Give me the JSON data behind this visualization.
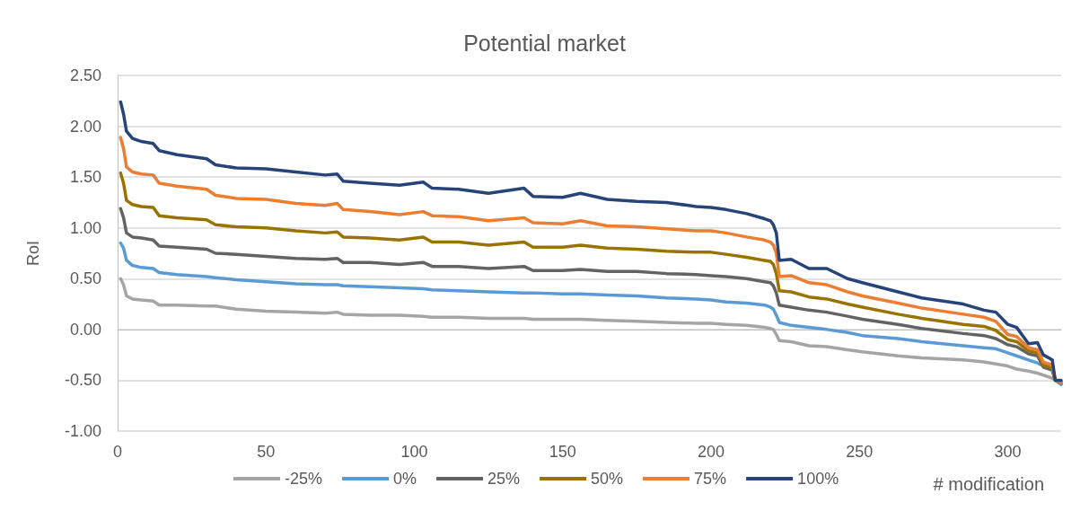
{
  "chart_data": {
    "type": "line",
    "title": "Potential market",
    "xlabel": "# modification",
    "ylabel": "RoI",
    "x": [
      1,
      2,
      3,
      5,
      8,
      12,
      14,
      20,
      30,
      33,
      40,
      50,
      60,
      70,
      74,
      76,
      85,
      95,
      103,
      106,
      115,
      125,
      137,
      140,
      150,
      156,
      165,
      175,
      185,
      195,
      200,
      205,
      212,
      218,
      220,
      221,
      222,
      223,
      227,
      233,
      239,
      246,
      251,
      263,
      271,
      285,
      292,
      296,
      300,
      303,
      307,
      310,
      312,
      315,
      316,
      318
    ],
    "series": [
      {
        "name": "-25%",
        "color": "#a5a5a5",
        "values": [
          0.5,
          0.44,
          0.33,
          0.3,
          0.29,
          0.28,
          0.24,
          0.24,
          0.23,
          0.23,
          0.2,
          0.18,
          0.17,
          0.16,
          0.17,
          0.15,
          0.14,
          0.14,
          0.13,
          0.12,
          0.12,
          0.11,
          0.11,
          0.1,
          0.1,
          0.1,
          0.09,
          0.08,
          0.07,
          0.06,
          0.06,
          0.05,
          0.04,
          0.02,
          0.01,
          0.0,
          -0.05,
          -0.11,
          -0.12,
          -0.16,
          -0.17,
          -0.2,
          -0.22,
          -0.26,
          -0.28,
          -0.3,
          -0.32,
          -0.34,
          -0.36,
          -0.39,
          -0.41,
          -0.43,
          -0.45,
          -0.48,
          -0.5,
          -0.54
        ]
      },
      {
        "name": "0%",
        "color": "#5b9bd5",
        "values": [
          0.85,
          0.8,
          0.68,
          0.63,
          0.61,
          0.6,
          0.56,
          0.54,
          0.52,
          0.51,
          0.49,
          0.47,
          0.45,
          0.44,
          0.44,
          0.43,
          0.42,
          0.41,
          0.4,
          0.39,
          0.38,
          0.37,
          0.36,
          0.36,
          0.35,
          0.35,
          0.34,
          0.33,
          0.31,
          0.3,
          0.29,
          0.27,
          0.26,
          0.24,
          0.22,
          0.2,
          0.14,
          0.07,
          0.04,
          0.02,
          0.0,
          -0.03,
          -0.06,
          -0.09,
          -0.12,
          -0.16,
          -0.18,
          -0.19,
          -0.23,
          -0.26,
          -0.3,
          -0.33,
          -0.36,
          -0.4,
          -0.5,
          -0.54
        ]
      },
      {
        "name": "25%",
        "color": "#636363",
        "values": [
          1.19,
          1.1,
          0.95,
          0.91,
          0.9,
          0.88,
          0.82,
          0.81,
          0.79,
          0.75,
          0.74,
          0.72,
          0.7,
          0.69,
          0.7,
          0.66,
          0.66,
          0.64,
          0.66,
          0.62,
          0.62,
          0.6,
          0.62,
          0.58,
          0.58,
          0.59,
          0.57,
          0.57,
          0.55,
          0.54,
          0.53,
          0.52,
          0.5,
          0.47,
          0.46,
          0.43,
          0.36,
          0.24,
          0.22,
          0.19,
          0.17,
          0.13,
          0.1,
          0.05,
          0.01,
          -0.04,
          -0.06,
          -0.09,
          -0.15,
          -0.17,
          -0.24,
          -0.26,
          -0.37,
          -0.4,
          -0.5,
          -0.52
        ]
      },
      {
        "name": "50%",
        "color": "#997300",
        "values": [
          1.54,
          1.44,
          1.27,
          1.23,
          1.21,
          1.2,
          1.12,
          1.1,
          1.08,
          1.03,
          1.01,
          1.0,
          0.97,
          0.95,
          0.96,
          0.91,
          0.9,
          0.88,
          0.91,
          0.86,
          0.86,
          0.83,
          0.86,
          0.81,
          0.81,
          0.83,
          0.8,
          0.79,
          0.77,
          0.76,
          0.76,
          0.74,
          0.71,
          0.68,
          0.67,
          0.64,
          0.55,
          0.38,
          0.37,
          0.32,
          0.3,
          0.25,
          0.22,
          0.15,
          0.11,
          0.05,
          0.03,
          -0.01,
          -0.1,
          -0.12,
          -0.21,
          -0.23,
          -0.35,
          -0.38,
          -0.5,
          -0.52
        ]
      },
      {
        "name": "75%",
        "color": "#ed7d31",
        "values": [
          1.89,
          1.78,
          1.6,
          1.55,
          1.53,
          1.52,
          1.44,
          1.41,
          1.38,
          1.32,
          1.29,
          1.28,
          1.24,
          1.22,
          1.24,
          1.18,
          1.16,
          1.13,
          1.16,
          1.12,
          1.11,
          1.07,
          1.1,
          1.05,
          1.04,
          1.07,
          1.02,
          1.01,
          0.99,
          0.97,
          0.97,
          0.95,
          0.91,
          0.88,
          0.86,
          0.83,
          0.75,
          0.52,
          0.53,
          0.46,
          0.44,
          0.37,
          0.33,
          0.26,
          0.21,
          0.15,
          0.12,
          0.08,
          -0.05,
          -0.07,
          -0.18,
          -0.2,
          -0.32,
          -0.35,
          -0.5,
          -0.52
        ]
      },
      {
        "name": "100%",
        "color": "#264478",
        "values": [
          2.24,
          2.12,
          1.95,
          1.88,
          1.85,
          1.83,
          1.76,
          1.72,
          1.68,
          1.62,
          1.59,
          1.58,
          1.55,
          1.52,
          1.53,
          1.46,
          1.44,
          1.42,
          1.45,
          1.39,
          1.38,
          1.34,
          1.39,
          1.31,
          1.3,
          1.34,
          1.28,
          1.26,
          1.25,
          1.21,
          1.2,
          1.18,
          1.14,
          1.09,
          1.07,
          1.03,
          0.95,
          0.68,
          0.69,
          0.6,
          0.6,
          0.5,
          0.46,
          0.37,
          0.31,
          0.25,
          0.19,
          0.17,
          0.05,
          0.02,
          -0.14,
          -0.13,
          -0.25,
          -0.3,
          -0.5,
          -0.5
        ]
      }
    ],
    "xlim": [
      0,
      318
    ],
    "xticks": [
      0,
      50,
      100,
      150,
      200,
      250,
      300
    ],
    "ylim": [
      -1,
      2.5
    ],
    "yticks": [
      {
        "value": -1,
        "label": "-1.00"
      },
      {
        "value": -0.5,
        "label": "-0.50"
      },
      {
        "value": 0,
        "label": "0.00"
      },
      {
        "value": 0.5,
        "label": "0.50"
      },
      {
        "value": 1,
        "label": "1.00"
      },
      {
        "value": 1.5,
        "label": "1.50"
      },
      {
        "value": 2,
        "label": "2.00"
      },
      {
        "value": 2.5,
        "label": "2.50"
      }
    ],
    "grid": "y",
    "legend": "bottom"
  }
}
